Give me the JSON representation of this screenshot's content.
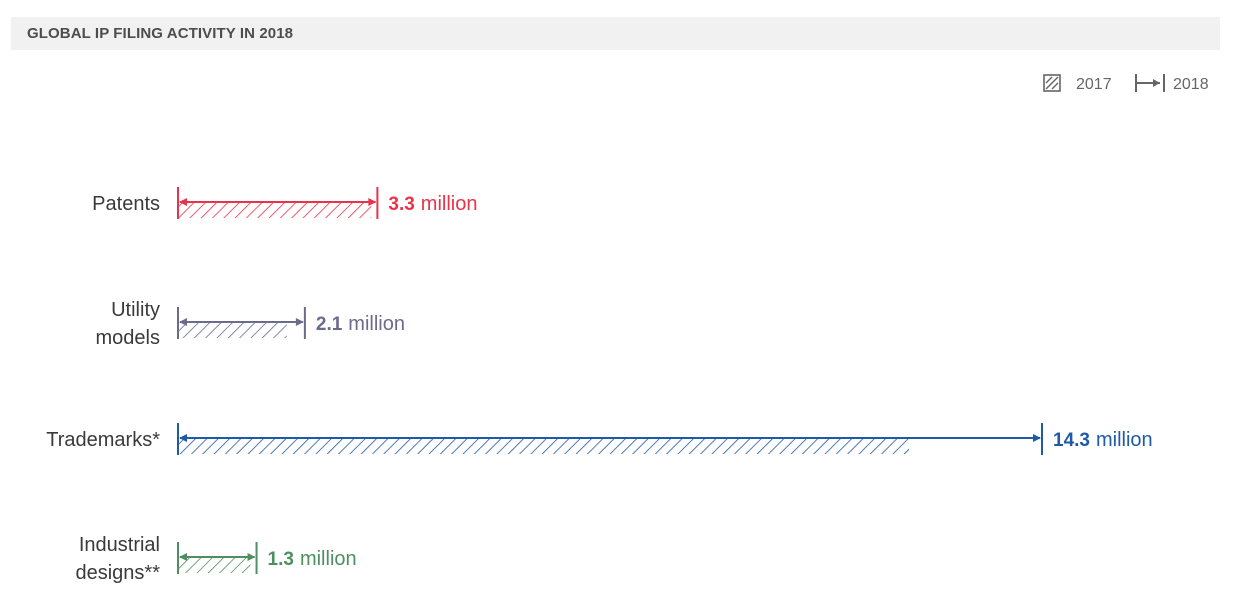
{
  "title": "GLOBAL IP FILING ACTIVITY IN 2018",
  "legend": {
    "label_2017": "2017",
    "label_2018": "2018"
  },
  "chart_data": {
    "type": "bar",
    "title": "GLOBAL IP FILING ACTIVITY IN 2018",
    "unit": "million",
    "categories": [
      {
        "lines": [
          "Patents"
        ],
        "color": "#e8334a",
        "value_2018": 3.3,
        "value_2017": 3.2,
        "label_value": "3.3"
      },
      {
        "lines": [
          "Utility",
          "models"
        ],
        "color": "#6b6b8c",
        "value_2018": 2.1,
        "value_2017": 1.8,
        "label_value": "2.1"
      },
      {
        "lines": [
          "Trademarks*"
        ],
        "color": "#1f5aa6",
        "value_2018": 14.3,
        "value_2017": 12.1,
        "label_value": "14.3"
      },
      {
        "lines": [
          "Industrial",
          "designs**"
        ],
        "color": "#4e8f62",
        "value_2018": 1.3,
        "value_2017": 1.2,
        "label_value": "1.3"
      }
    ],
    "series": [
      {
        "name": "2017",
        "style": "hatched"
      },
      {
        "name": "2018",
        "style": "arrow"
      }
    ],
    "xlim": [
      0,
      14.3
    ],
    "grid": false,
    "legend_position": "top-right"
  }
}
